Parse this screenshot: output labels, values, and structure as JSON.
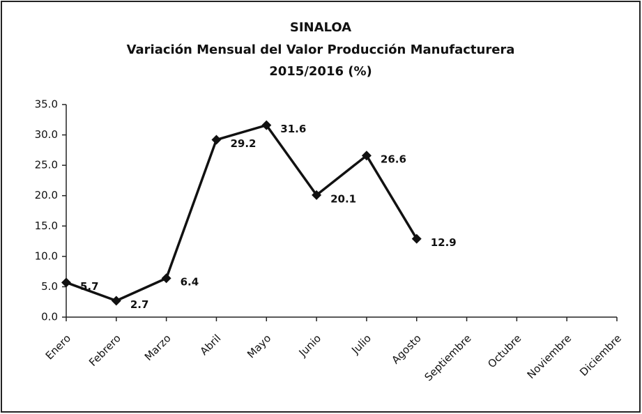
{
  "chart_data": {
    "type": "line",
    "title": "SINALOA",
    "subtitle": "Variación Mensual del Valor Producción Manufacturera",
    "subtitle2": "2015/2016 (%)",
    "categories": [
      "Enero",
      "Febrero",
      "Marzo",
      "Abril",
      "Mayo",
      "Junio",
      "Julio",
      "Agosto",
      "Septiembre",
      "Octubre",
      "Noviembre",
      "Diciembre"
    ],
    "values": [
      5.7,
      2.7,
      6.4,
      29.2,
      31.6,
      20.1,
      26.6,
      12.9,
      null,
      null,
      null,
      null
    ],
    "color": "#111111",
    "ylim": [
      0,
      35
    ],
    "yticks": [
      {
        "value": 0,
        "label": "0.0"
      },
      {
        "value": 5,
        "label": "5.0"
      },
      {
        "value": 10,
        "label": "10.0"
      },
      {
        "value": 15,
        "label": "15.0"
      },
      {
        "value": 20,
        "label": "20.0"
      },
      {
        "value": 25,
        "label": "25.0"
      },
      {
        "value": 30,
        "label": "30.0"
      },
      {
        "value": 35,
        "label": "35.0"
      }
    ],
    "grid": false
  }
}
